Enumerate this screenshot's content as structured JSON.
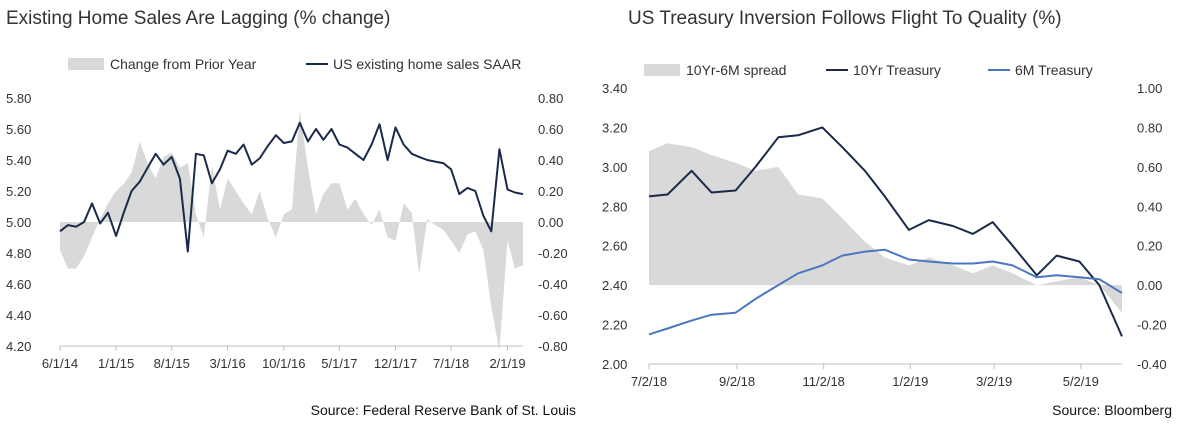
{
  "chart_data": [
    {
      "type": "area+line",
      "title": "Existing Home Sales Are Lagging (% change)",
      "source": "Source: Federal Reserve Bank of St. Louis",
      "x_ticks": [
        "6/1/14",
        "1/1/15",
        "8/1/15",
        "3/1/16",
        "10/1/16",
        "5/1/17",
        "12/1/17",
        "7/1/18",
        "2/1/19"
      ],
      "x_range": [
        "2014-06",
        "2019-04"
      ],
      "left_axis": {
        "ticks": [
          "5.80",
          "5.60",
          "5.40",
          "5.20",
          "5.00",
          "4.80",
          "4.60",
          "4.40",
          "4.20"
        ],
        "range": [
          4.2,
          5.8
        ]
      },
      "right_axis": {
        "ticks": [
          "0.80",
          "0.60",
          "0.40",
          "0.20",
          "0.00",
          "-0.20",
          "-0.40",
          "-0.60",
          "-0.80"
        ],
        "range": [
          -0.8,
          0.8
        ]
      },
      "legend": {
        "position": "top",
        "entries": [
          "Change from Prior Year",
          "US existing home sales SAAR"
        ]
      },
      "colors": {
        "area": "#d9d9d9",
        "line": "#1a2a4a"
      },
      "series": [
        {
          "name": "Change from Prior Year",
          "kind": "area",
          "axis": "right",
          "x": [
            "2014-06",
            "2014-07",
            "2014-08",
            "2014-09",
            "2014-10",
            "2014-11",
            "2014-12",
            "2015-01",
            "2015-02",
            "2015-03",
            "2015-04",
            "2015-05",
            "2015-06",
            "2015-07",
            "2015-08",
            "2015-09",
            "2015-10",
            "2015-11",
            "2015-12",
            "2016-01",
            "2016-02",
            "2016-03",
            "2016-04",
            "2016-05",
            "2016-06",
            "2016-07",
            "2016-08",
            "2016-09",
            "2016-10",
            "2016-11",
            "2016-12",
            "2017-01",
            "2017-02",
            "2017-03",
            "2017-04",
            "2017-05",
            "2017-06",
            "2017-07",
            "2017-08",
            "2017-09",
            "2017-10",
            "2017-11",
            "2017-12",
            "2018-01",
            "2018-02",
            "2018-03",
            "2018-04",
            "2018-05",
            "2018-06",
            "2018-07",
            "2018-08",
            "2018-09",
            "2018-10",
            "2018-11",
            "2018-12",
            "2019-01",
            "2019-02",
            "2019-03",
            "2019-04"
          ],
          "values": [
            -0.18,
            -0.3,
            -0.3,
            -0.22,
            -0.1,
            0.02,
            0.12,
            0.2,
            0.25,
            0.32,
            0.52,
            0.38,
            0.28,
            0.42,
            0.45,
            0.35,
            0.38,
            0.05,
            -0.1,
            0.36,
            0.08,
            0.28,
            0.2,
            0.12,
            0.05,
            0.2,
            0.02,
            -0.1,
            0.05,
            0.08,
            0.72,
            0.35,
            0.05,
            0.18,
            0.25,
            0.25,
            0.08,
            0.15,
            0.05,
            -0.02,
            0.08,
            -0.1,
            -0.12,
            0.12,
            0.06,
            -0.34,
            0.02,
            -0.02,
            -0.05,
            -0.12,
            -0.2,
            -0.08,
            -0.06,
            -0.18,
            -0.55,
            -0.83,
            -0.12,
            -0.3,
            -0.28
          ]
        },
        {
          "name": "US existing home sales SAAR",
          "kind": "line",
          "axis": "left",
          "x": [
            "2014-06",
            "2014-07",
            "2014-08",
            "2014-09",
            "2014-10",
            "2014-11",
            "2014-12",
            "2015-01",
            "2015-02",
            "2015-03",
            "2015-04",
            "2015-05",
            "2015-06",
            "2015-07",
            "2015-08",
            "2015-09",
            "2015-10",
            "2015-11",
            "2015-12",
            "2016-01",
            "2016-02",
            "2016-03",
            "2016-04",
            "2016-05",
            "2016-06",
            "2016-07",
            "2016-08",
            "2016-09",
            "2016-10",
            "2016-11",
            "2016-12",
            "2017-01",
            "2017-02",
            "2017-03",
            "2017-04",
            "2017-05",
            "2017-06",
            "2017-07",
            "2017-08",
            "2017-09",
            "2017-10",
            "2017-11",
            "2017-12",
            "2018-01",
            "2018-02",
            "2018-03",
            "2018-04",
            "2018-05",
            "2018-06",
            "2018-07",
            "2018-08",
            "2018-09",
            "2018-10",
            "2018-11",
            "2018-12",
            "2019-01",
            "2019-02",
            "2019-03",
            "2019-04"
          ],
          "values": [
            4.94,
            4.98,
            4.97,
            5.0,
            5.12,
            4.99,
            5.06,
            4.91,
            5.07,
            5.2,
            5.26,
            5.35,
            5.44,
            5.37,
            5.42,
            5.28,
            4.81,
            5.44,
            5.43,
            5.25,
            5.34,
            5.46,
            5.44,
            5.5,
            5.37,
            5.41,
            5.49,
            5.56,
            5.51,
            5.52,
            5.64,
            5.52,
            5.6,
            5.53,
            5.6,
            5.5,
            5.48,
            5.44,
            5.4,
            5.5,
            5.63,
            5.4,
            5.61,
            5.5,
            5.44,
            5.42,
            5.4,
            5.39,
            5.38,
            5.34,
            5.18,
            5.22,
            5.2,
            5.04,
            4.94,
            5.47,
            5.21,
            5.19,
            5.18
          ]
        }
      ]
    },
    {
      "type": "area+line",
      "title": "US Treasury Inversion Follows Flight To Quality (%)",
      "source": "Source: Bloomberg",
      "x_ticks": [
        "7/2/18",
        "9/2/18",
        "11/2/18",
        "1/2/19",
        "3/2/19",
        "5/2/19"
      ],
      "x_range": [
        "2018-07-02",
        "2019-05-31"
      ],
      "left_axis": {
        "ticks": [
          "3.40",
          "3.20",
          "3.00",
          "2.80",
          "2.60",
          "2.40",
          "2.20",
          "2.00"
        ],
        "range": [
          2.0,
          3.4
        ]
      },
      "right_axis": {
        "ticks": [
          "1.00",
          "0.80",
          "0.60",
          "0.40",
          "0.20",
          "0.00",
          "-0.20",
          "-0.40"
        ],
        "range": [
          -0.4,
          1.0
        ]
      },
      "legend": {
        "position": "top",
        "entries": [
          "10Yr-6M spread",
          "10Yr Treasury",
          "6M Treasury"
        ]
      },
      "colors": {
        "area": "#d9d9d9",
        "line10y": "#1a2a4a",
        "line6m": "#4a78c0"
      },
      "series": [
        {
          "name": "10Yr-6M spread",
          "kind": "area",
          "axis": "right",
          "x": [
            "2018-07-02",
            "2018-07-15",
            "2018-08-01",
            "2018-08-15",
            "2018-09-01",
            "2018-09-15",
            "2018-10-01",
            "2018-10-15",
            "2018-11-01",
            "2018-11-15",
            "2018-12-01",
            "2018-12-15",
            "2019-01-01",
            "2019-01-15",
            "2019-02-01",
            "2019-02-15",
            "2019-03-01",
            "2019-03-15",
            "2019-04-01",
            "2019-04-15",
            "2019-05-01",
            "2019-05-15",
            "2019-05-31"
          ],
          "values": [
            0.68,
            0.72,
            0.7,
            0.66,
            0.62,
            0.58,
            0.6,
            0.46,
            0.44,
            0.34,
            0.22,
            0.14,
            0.1,
            0.14,
            0.1,
            0.06,
            0.1,
            0.06,
            0.0,
            0.02,
            0.04,
            0.0,
            -0.14
          ]
        },
        {
          "name": "10Yr Treasury",
          "kind": "line",
          "axis": "left",
          "x": [
            "2018-07-02",
            "2018-07-15",
            "2018-08-01",
            "2018-08-15",
            "2018-09-01",
            "2018-09-15",
            "2018-10-01",
            "2018-10-15",
            "2018-11-01",
            "2018-11-15",
            "2018-12-01",
            "2018-12-15",
            "2019-01-01",
            "2019-01-15",
            "2019-02-01",
            "2019-02-15",
            "2019-03-01",
            "2019-03-15",
            "2019-04-01",
            "2019-04-15",
            "2019-05-01",
            "2019-05-15",
            "2019-05-31"
          ],
          "values": [
            2.85,
            2.86,
            2.98,
            2.87,
            2.88,
            3.0,
            3.15,
            3.16,
            3.2,
            3.1,
            2.98,
            2.85,
            2.68,
            2.73,
            2.7,
            2.66,
            2.72,
            2.6,
            2.45,
            2.55,
            2.52,
            2.4,
            2.14
          ]
        },
        {
          "name": "6M Treasury",
          "kind": "line",
          "axis": "left",
          "x": [
            "2018-07-02",
            "2018-07-15",
            "2018-08-01",
            "2018-08-15",
            "2018-09-01",
            "2018-09-15",
            "2018-10-01",
            "2018-10-15",
            "2018-11-01",
            "2018-11-15",
            "2018-12-01",
            "2018-12-15",
            "2019-01-01",
            "2019-01-15",
            "2019-02-01",
            "2019-02-15",
            "2019-03-01",
            "2019-03-15",
            "2019-04-01",
            "2019-04-15",
            "2019-05-01",
            "2019-05-15",
            "2019-05-31"
          ],
          "values": [
            2.15,
            2.18,
            2.22,
            2.25,
            2.26,
            2.33,
            2.4,
            2.46,
            2.5,
            2.55,
            2.57,
            2.58,
            2.53,
            2.52,
            2.51,
            2.51,
            2.52,
            2.5,
            2.44,
            2.45,
            2.44,
            2.43,
            2.36
          ]
        }
      ]
    }
  ]
}
